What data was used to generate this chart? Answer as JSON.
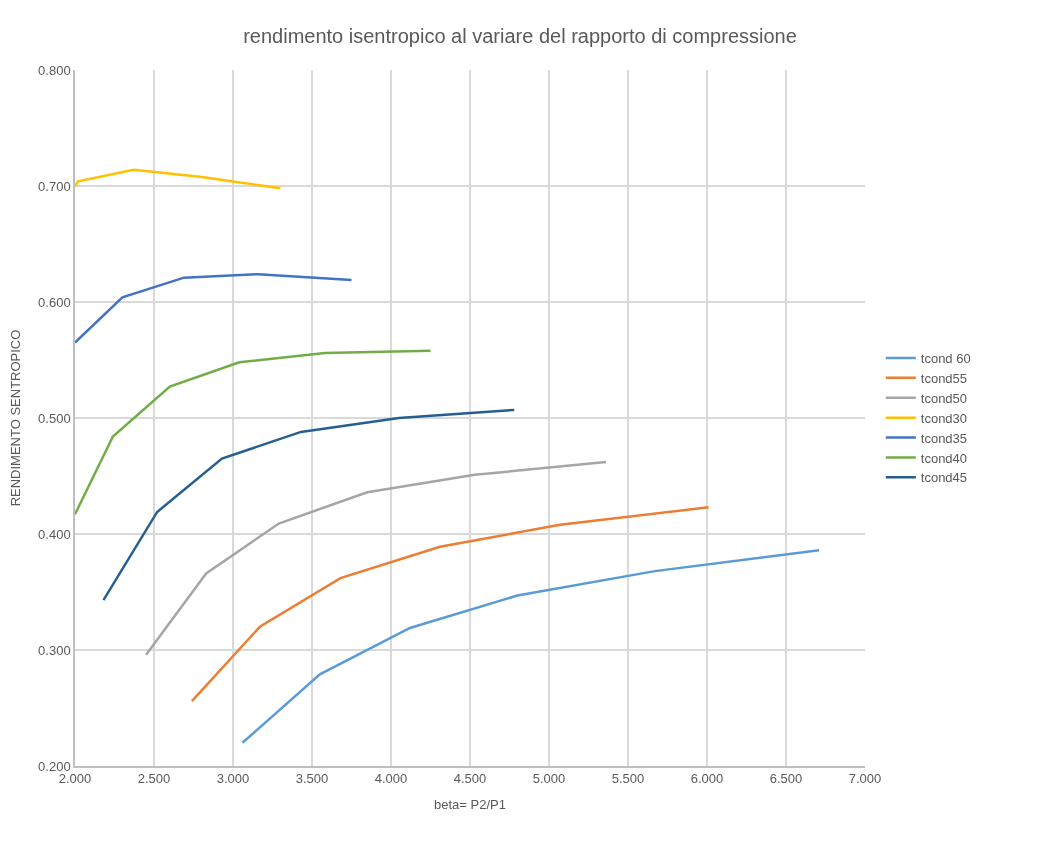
{
  "chart_data": {
    "type": "line",
    "title": "rendimento isentropico al variare del rapporto di compressione",
    "xlabel": "beta= P2/P1",
    "ylabel": "RENDIMENTO SENTROPICO",
    "xlim": [
      2,
      7
    ],
    "ylim": [
      0.2,
      0.8
    ],
    "xticks": [
      {
        "value": 2,
        "label": "2.000"
      },
      {
        "value": 2.5,
        "label": "2.500"
      },
      {
        "value": 3,
        "label": "3.000"
      },
      {
        "value": 3.5,
        "label": "3.500"
      },
      {
        "value": 4,
        "label": "4.000"
      },
      {
        "value": 4.5,
        "label": "4.500"
      },
      {
        "value": 5,
        "label": "5.000"
      },
      {
        "value": 5.5,
        "label": "5.500"
      },
      {
        "value": 6,
        "label": "6.000"
      },
      {
        "value": 6.5,
        "label": "6.500"
      },
      {
        "value": 7,
        "label": "7.000"
      }
    ],
    "yticks": [
      {
        "value": 0.2,
        "label": "0.200"
      },
      {
        "value": 0.3,
        "label": "0.300"
      },
      {
        "value": 0.4,
        "label": "0.400"
      },
      {
        "value": 0.5,
        "label": "0.500"
      },
      {
        "value": 0.6,
        "label": "0.600"
      },
      {
        "value": 0.7,
        "label": "0.700"
      },
      {
        "value": 0.8,
        "label": "0.800"
      }
    ],
    "grid": true,
    "legend": "right",
    "marker": "none",
    "line_style": "solid",
    "series": [
      {
        "name": "tcond 60",
        "color": "#5b9bd5",
        "x": [
          3.06,
          3.55,
          4.12,
          4.8,
          5.67,
          6.71
        ],
        "values": [
          0.22,
          0.279,
          0.319,
          0.347,
          0.368,
          0.386
        ]
      },
      {
        "name": "tcond55",
        "color": "#ed7d31",
        "x": [
          2.74,
          3.17,
          3.68,
          4.31,
          5.07,
          6.01
        ],
        "values": [
          0.256,
          0.32,
          0.362,
          0.389,
          0.408,
          0.423
        ]
      },
      {
        "name": "tcond50",
        "color": "#a5a5a5",
        "x": [
          2.45,
          2.83,
          3.29,
          3.85,
          4.53,
          5.36
        ],
        "values": [
          0.296,
          0.366,
          0.409,
          0.436,
          0.451,
          0.462
        ]
      },
      {
        "name": "tcond30",
        "color": "#ffc000",
        "x": [
          2.0,
          2.02,
          2.37,
          2.79,
          3.3
        ],
        "values": [
          0.7,
          0.704,
          0.714,
          0.708,
          0.698
        ]
      },
      {
        "name": "tcond35",
        "color": "#4472c4",
        "x": [
          2.0,
          2.3,
          2.69,
          3.16,
          3.75
        ],
        "values": [
          0.565,
          0.604,
          0.621,
          0.624,
          0.619
        ]
      },
      {
        "name": "tcond40",
        "color": "#70ad47",
        "x": [
          2.0,
          2.24,
          2.6,
          3.04,
          3.58,
          4.25
        ],
        "values": [
          0.417,
          0.484,
          0.527,
          0.548,
          0.556,
          0.558
        ]
      },
      {
        "name": "tcond45",
        "color": "#255e91",
        "x": [
          2.18,
          2.52,
          2.93,
          3.43,
          4.05,
          4.78
        ],
        "values": [
          0.343,
          0.419,
          0.465,
          0.488,
          0.5,
          0.507
        ]
      }
    ]
  }
}
